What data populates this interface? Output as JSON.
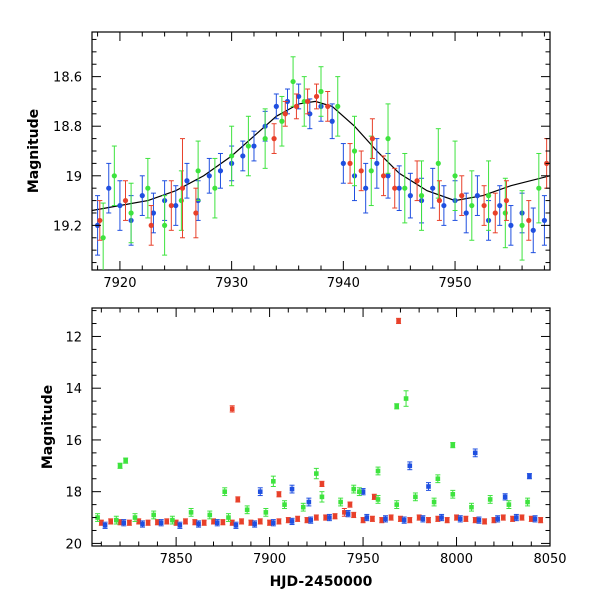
{
  "chart_data": [
    {
      "type": "scatter",
      "panel": "top",
      "title": "",
      "xlabel": "",
      "ylabel": "Magnitude",
      "xlim": [
        7917.5,
        7958.5
      ],
      "ylim": [
        19.38,
        18.42
      ],
      "y_inverted": true,
      "xticks": [
        7920,
        7930,
        7940,
        7950
      ],
      "yticks": [
        18.6,
        18.8,
        19,
        19.2
      ],
      "ytick_labels": [
        "18.6",
        "18.8",
        "19",
        "19.2"
      ],
      "grid": false,
      "legend": "none",
      "model_curve": {
        "color": "#000000",
        "x": [
          7917.5,
          7920,
          7922.5,
          7925,
          7927.5,
          7930,
          7932,
          7934,
          7936,
          7937.5,
          7939,
          7941,
          7943,
          7945,
          7947.5,
          7950,
          7952.5,
          7955,
          7958.5
        ],
        "y": [
          19.14,
          19.12,
          19.1,
          19.06,
          19.0,
          18.92,
          18.84,
          18.76,
          18.71,
          18.7,
          18.72,
          18.8,
          18.9,
          18.99,
          19.06,
          19.1,
          19.08,
          19.04,
          19.0
        ]
      },
      "series": [
        {
          "color": "#1f4fe0",
          "x": [
            7918,
            7919,
            7920,
            7921,
            7922,
            7923,
            7924,
            7925,
            7926,
            7927,
            7928,
            7929,
            7930,
            7931,
            7932,
            7933,
            7934,
            7935,
            7936,
            7937,
            7938,
            7939,
            7940,
            7941,
            7942,
            7943,
            7944,
            7945,
            7946,
            7947,
            7948,
            7949,
            7950,
            7951,
            7952,
            7953,
            7954,
            7955,
            7956,
            7957,
            7958
          ],
          "y": [
            19.2,
            19.05,
            19.12,
            19.18,
            19.08,
            19.15,
            19.1,
            19.12,
            19.02,
            19.1,
            19.0,
            18.98,
            18.95,
            18.92,
            18.88,
            18.8,
            18.72,
            18.7,
            18.68,
            18.75,
            18.72,
            18.78,
            18.95,
            19.0,
            19.05,
            18.95,
            19.0,
            19.05,
            19.08,
            19.1,
            19.05,
            19.12,
            19.1,
            19.15,
            19.08,
            19.18,
            19.12,
            19.2,
            19.15,
            19.22,
            19.18
          ],
          "err": [
            0.12,
            0.1,
            0.1,
            0.1,
            0.08,
            0.08,
            0.08,
            0.08,
            0.07,
            0.08,
            0.07,
            0.07,
            0.07,
            0.06,
            0.06,
            0.06,
            0.05,
            0.05,
            0.05,
            0.06,
            0.06,
            0.07,
            0.08,
            0.1,
            0.1,
            0.1,
            0.09,
            0.09,
            0.09,
            0.09,
            0.08,
            0.08,
            0.08,
            0.08,
            0.08,
            0.08,
            0.08,
            0.08,
            0.08,
            0.09,
            0.1
          ]
        },
        {
          "color": "#3ee33e",
          "x": [
            7918.5,
            7919.5,
            7921,
            7922.5,
            7924,
            7925.5,
            7927,
            7928.5,
            7930,
            7931.5,
            7933,
            7934.5,
            7935.5,
            7936.5,
            7938,
            7939.5,
            7941,
            7942.5,
            7944,
            7945.5,
            7947,
            7948.5,
            7950,
            7951.5,
            7953,
            7954.5,
            7956,
            7957.5
          ],
          "y": [
            19.25,
            19.0,
            19.15,
            19.05,
            19.2,
            19.1,
            18.98,
            19.05,
            18.92,
            18.88,
            18.85,
            18.78,
            18.62,
            18.7,
            18.66,
            18.72,
            18.9,
            18.98,
            18.85,
            19.05,
            19.08,
            18.95,
            19.0,
            19.12,
            19.08,
            19.15,
            19.2,
            19.05
          ],
          "err": [
            0.14,
            0.12,
            0.12,
            0.12,
            0.12,
            0.12,
            0.12,
            0.12,
            0.12,
            0.12,
            0.12,
            0.1,
            0.1,
            0.1,
            0.1,
            0.12,
            0.14,
            0.14,
            0.14,
            0.14,
            0.14,
            0.14,
            0.14,
            0.14,
            0.14,
            0.14,
            0.14,
            0.14
          ]
        },
        {
          "color": "#e8402a",
          "x": [
            7918.2,
            7920.5,
            7922.8,
            7924.6,
            7925.6,
            7926.8,
            7933.8,
            7934.8,
            7935.8,
            7936.8,
            7937.6,
            7938.6,
            7940.6,
            7941.6,
            7942.6,
            7943.6,
            7944.6,
            7946.6,
            7948.6,
            7950.6,
            7952.6,
            7953.6,
            7954.6,
            7956.6,
            7958.2
          ],
          "y": [
            19.18,
            19.1,
            19.2,
            19.12,
            19.05,
            19.15,
            18.85,
            18.75,
            18.72,
            18.7,
            18.68,
            18.72,
            18.95,
            18.98,
            18.85,
            19.0,
            19.05,
            19.02,
            19.1,
            19.08,
            19.12,
            19.15,
            19.1,
            19.18,
            18.95
          ],
          "err": [
            0.08,
            0.08,
            0.08,
            0.1,
            0.2,
            0.1,
            0.06,
            0.05,
            0.05,
            0.05,
            0.05,
            0.06,
            0.08,
            0.08,
            0.08,
            0.08,
            0.08,
            0.08,
            0.08,
            0.08,
            0.08,
            0.08,
            0.08,
            0.08,
            0.1
          ]
        }
      ]
    },
    {
      "type": "scatter",
      "panel": "bottom",
      "title": "",
      "xlabel": "HJD-2450000",
      "ylabel": "Magnitude",
      "xlim": [
        7805,
        8050
      ],
      "ylim": [
        20.1,
        10.9
      ],
      "y_inverted": true,
      "xticks": [
        7850,
        7900,
        7950,
        8000,
        8050
      ],
      "yticks": [
        12,
        14,
        16,
        18,
        20
      ],
      "grid": false,
      "legend": "none",
      "series": [
        {
          "color": "#e8402a",
          "x": [
            7810,
            7815,
            7820,
            7825,
            7830,
            7835,
            7840,
            7845,
            7850,
            7855,
            7860,
            7865,
            7870,
            7875,
            7880,
            7885,
            7890,
            7895,
            7900,
            7905,
            7910,
            7915,
            7920,
            7925,
            7930,
            7935,
            7940,
            7945,
            7950,
            7955,
            7960,
            7965,
            7970,
            7975,
            7980,
            7985,
            7990,
            7995,
            8000,
            8005,
            8010,
            8015,
            8020,
            8025,
            8030,
            8035,
            8040,
            8045,
            7880,
            7969,
            7883,
            7905,
            7928,
            7943,
            7956
          ],
          "y": [
            19.2,
            19.15,
            19.18,
            19.2,
            19.15,
            19.2,
            19.18,
            19.15,
            19.2,
            19.15,
            19.18,
            19.2,
            19.15,
            19.18,
            19.2,
            19.15,
            19.2,
            19.15,
            19.2,
            19.15,
            19.1,
            19.05,
            19.1,
            19.0,
            19.0,
            18.95,
            18.8,
            18.9,
            19.1,
            19.05,
            19.1,
            19.0,
            19.05,
            19.1,
            19.0,
            19.1,
            19.05,
            19.1,
            19.0,
            19.05,
            19.1,
            19.15,
            19.1,
            19.0,
            19.05,
            19.0,
            19.05,
            19.1,
            14.8,
            11.4,
            18.3,
            18.1,
            17.7,
            18.5,
            18.2
          ],
          "err": [
            0.1,
            0.1,
            0.1,
            0.1,
            0.1,
            0.1,
            0.1,
            0.1,
            0.1,
            0.1,
            0.1,
            0.1,
            0.1,
            0.1,
            0.1,
            0.1,
            0.1,
            0.1,
            0.1,
            0.1,
            0.1,
            0.1,
            0.1,
            0.1,
            0.1,
            0.1,
            0.15,
            0.1,
            0.1,
            0.1,
            0.1,
            0.1,
            0.1,
            0.1,
            0.1,
            0.1,
            0.1,
            0.1,
            0.1,
            0.1,
            0.1,
            0.1,
            0.1,
            0.1,
            0.1,
            0.1,
            0.1,
            0.1,
            0.12,
            0.1,
            0.1,
            0.1,
            0.1,
            0.1,
            0.1
          ]
        },
        {
          "color": "#1f4fe0",
          "x": [
            7812,
            7822,
            7832,
            7842,
            7852,
            7862,
            7872,
            7882,
            7892,
            7902,
            7912,
            7922,
            7932,
            7942,
            7952,
            7962,
            7972,
            7982,
            7992,
            8002,
            8012,
            8022,
            8032,
            8042,
            7895,
            7912,
            7975,
            8010,
            8039,
            7985,
            8026,
            7950,
            7921
          ],
          "y": [
            19.3,
            19.2,
            19.25,
            19.2,
            19.3,
            19.25,
            19.2,
            19.3,
            19.25,
            19.2,
            19.15,
            19.1,
            19.0,
            18.85,
            19.0,
            19.05,
            19.1,
            19.05,
            19.0,
            19.05,
            19.1,
            19.05,
            19.0,
            19.05,
            18.0,
            17.9,
            17.0,
            16.5,
            17.4,
            17.8,
            18.2,
            18.0,
            18.4
          ],
          "err": [
            0.12,
            0.12,
            0.12,
            0.12,
            0.12,
            0.12,
            0.12,
            0.12,
            0.12,
            0.12,
            0.12,
            0.12,
            0.12,
            0.12,
            0.12,
            0.12,
            0.12,
            0.12,
            0.12,
            0.12,
            0.12,
            0.12,
            0.12,
            0.12,
            0.15,
            0.15,
            0.15,
            0.15,
            0.1,
            0.15,
            0.12,
            0.12,
            0.15
          ]
        },
        {
          "color": "#3ee33e",
          "x": [
            7808,
            7818,
            7828,
            7838,
            7848,
            7858,
            7868,
            7878,
            7888,
            7898,
            7908,
            7918,
            7928,
            7938,
            7948,
            7958,
            7968,
            7978,
            7988,
            7998,
            8008,
            8018,
            8028,
            8038,
            7820,
            7823,
            7973,
            7968,
            7998,
            7925,
            7945,
            7990,
            7876,
            7902,
            7958
          ],
          "y": [
            19.0,
            19.1,
            19.0,
            18.9,
            19.1,
            18.8,
            18.9,
            19.0,
            18.7,
            18.8,
            18.5,
            18.6,
            18.2,
            18.4,
            18.0,
            18.3,
            18.5,
            18.2,
            18.4,
            18.1,
            18.6,
            18.3,
            18.5,
            18.4,
            17.0,
            16.8,
            14.4,
            14.7,
            16.2,
            17.3,
            17.9,
            17.5,
            18.0,
            17.6,
            17.2
          ],
          "err": [
            0.15,
            0.15,
            0.15,
            0.15,
            0.15,
            0.15,
            0.15,
            0.15,
            0.15,
            0.15,
            0.15,
            0.15,
            0.2,
            0.15,
            0.15,
            0.15,
            0.15,
            0.15,
            0.15,
            0.15,
            0.15,
            0.15,
            0.15,
            0.15,
            0.1,
            0.1,
            0.3,
            0.1,
            0.1,
            0.2,
            0.15,
            0.15,
            0.15,
            0.2,
            0.15
          ]
        }
      ]
    }
  ]
}
